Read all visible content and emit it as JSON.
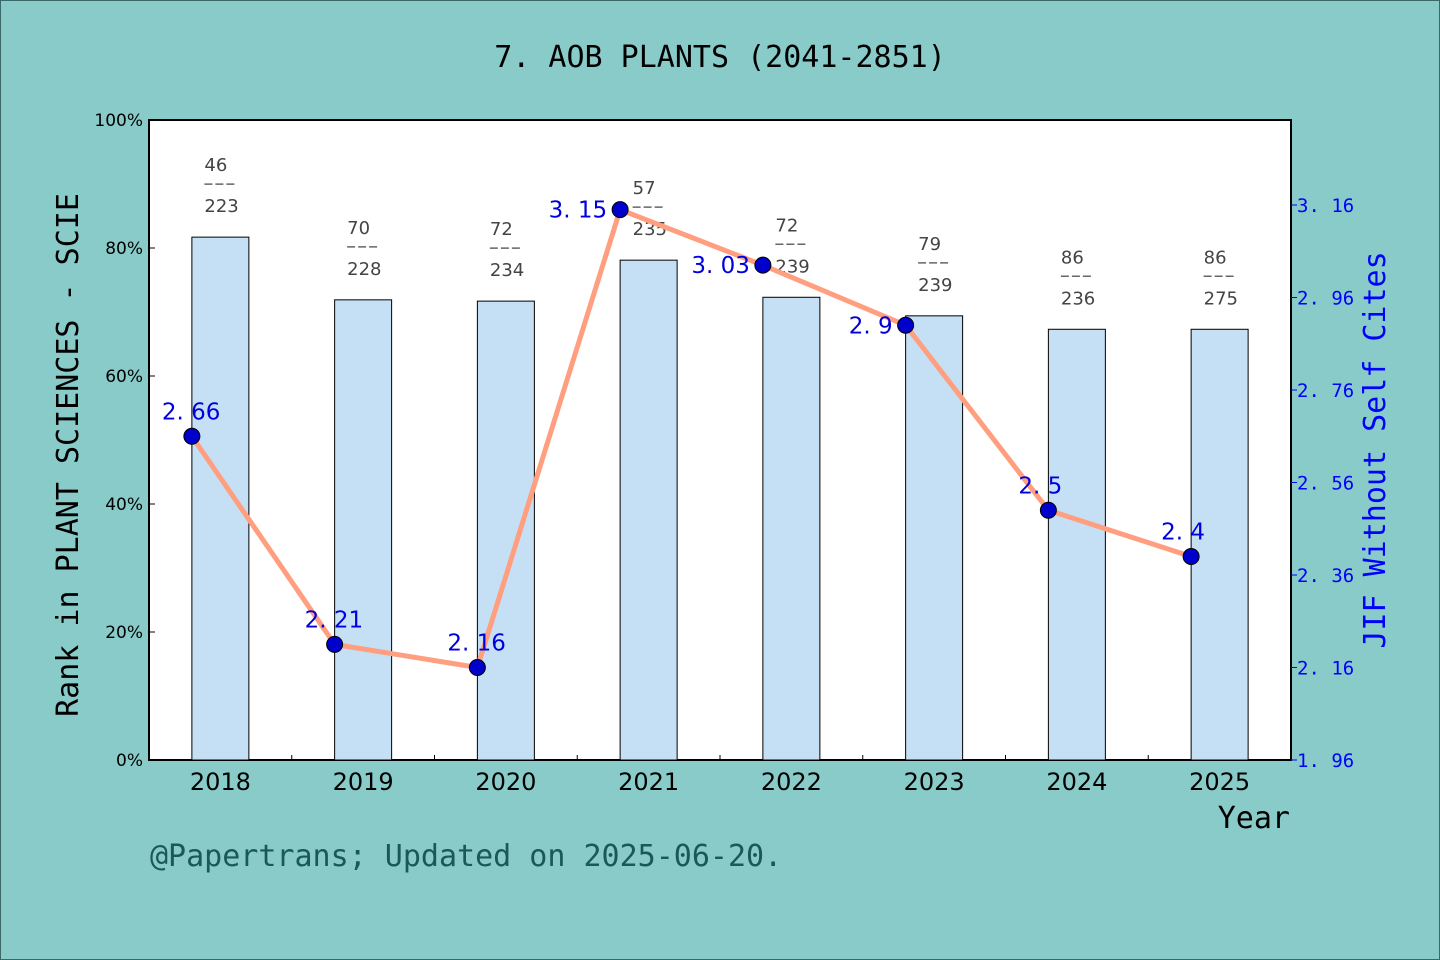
{
  "chart_data": {
    "type": "bar+line",
    "title": "7. AOB PLANTS (2041-2851)",
    "xlabel": "Year",
    "ylabel": "Rank in PLANT SCIENCES - SCIE",
    "y2label": "JIF Without Self Cites",
    "categories": [
      "2018",
      "2019",
      "2020",
      "2021",
      "2022",
      "2023",
      "2024",
      "2025"
    ],
    "ylim": [
      0,
      100
    ],
    "yticks": [
      "0%",
      "20%",
      "40%",
      "60%",
      "80%",
      "100%"
    ],
    "y2lim": [
      1.96,
      3.36
    ],
    "y2ticks": [
      "1.96",
      "2.16",
      "2.36",
      "2.56",
      "2.76",
      "2.96",
      "3.16"
    ],
    "bar_values_percent": [
      81.7,
      71.9,
      71.7,
      78.1,
      72.3,
      69.4,
      67.3,
      67.3
    ],
    "rank_labels": [
      {
        "rank": "46",
        "total": "223"
      },
      {
        "rank": "70",
        "total": "228"
      },
      {
        "rank": "72",
        "total": "234"
      },
      {
        "rank": "57",
        "total": "235"
      },
      {
        "rank": "72",
        "total": "239"
      },
      {
        "rank": "79",
        "total": "239"
      },
      {
        "rank": "86",
        "total": "236"
      },
      {
        "rank": "86",
        "total": "275"
      }
    ],
    "line_values": [
      2.66,
      2.21,
      2.16,
      3.15,
      3.03,
      2.9,
      2.5,
      2.4
    ],
    "line_labels": [
      "2. 66",
      "2. 21",
      "2. 16",
      "3. 15",
      "3. 03",
      "2. 9",
      "2. 5",
      "2. 4"
    ],
    "colors": {
      "bar": "#c5e0f5",
      "line": "#ff9f7f",
      "marker": "#0000cc",
      "right_axis": "#0000ff",
      "background": "#88cbc9"
    },
    "grid": false
  },
  "footer": "@Papertrans; Updated on 2025-06-20."
}
